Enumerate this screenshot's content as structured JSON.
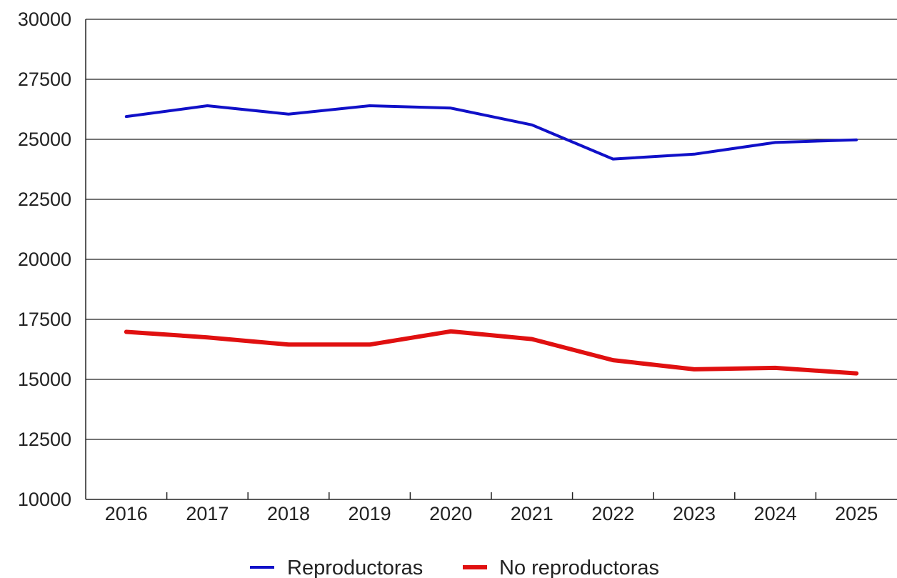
{
  "chart_data": {
    "type": "line",
    "x": [
      "2016",
      "2017",
      "2018",
      "2019",
      "2020",
      "2021",
      "2022",
      "2023",
      "2024",
      "2025"
    ],
    "ylim": [
      10000,
      30000
    ],
    "yticks": [
      "10000",
      "12500",
      "15000",
      "17500",
      "20000",
      "22500",
      "25000",
      "27500",
      "30000"
    ],
    "ytick_values": [
      10000,
      12500,
      15000,
      17500,
      20000,
      22500,
      25000,
      27500,
      30000
    ],
    "grid": "horizontal",
    "legend_position": "bottom",
    "series": [
      {
        "name": "Reproductoras",
        "color": "#1010c8",
        "values": [
          25950,
          26400,
          26050,
          26400,
          26300,
          25600,
          24180,
          24380,
          24870,
          24980
        ]
      },
      {
        "name": "No reproductoras",
        "color": "#e01010",
        "values": [
          16980,
          16750,
          16450,
          16450,
          17000,
          16680,
          15800,
          15420,
          15480,
          15250
        ]
      }
    ]
  }
}
